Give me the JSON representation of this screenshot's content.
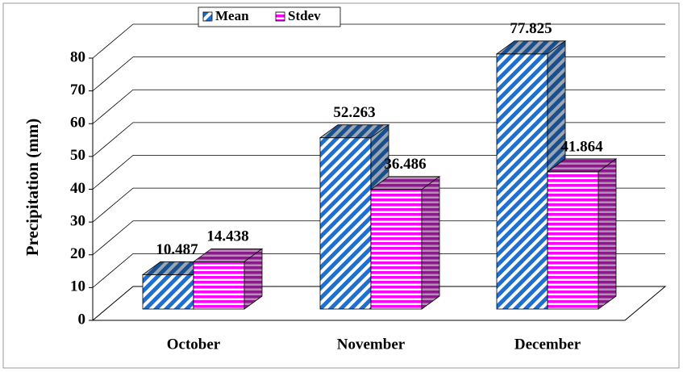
{
  "chart_data": {
    "type": "bar3d",
    "y_label": "Precipitation (mm)",
    "categories": [
      "October",
      "November",
      "December"
    ],
    "series": [
      {
        "name": "Mean",
        "color": "#1f6fd0",
        "values": [
          10.487,
          52.263,
          77.825
        ]
      },
      {
        "name": "Stdev",
        "color": "#ff00ff",
        "values": [
          14.438,
          36.486,
          41.864
        ]
      }
    ],
    "ylim": [
      0,
      80
    ],
    "yticks": [
      0,
      10,
      20,
      30,
      40,
      50,
      60,
      70,
      80
    ],
    "grid": true
  }
}
